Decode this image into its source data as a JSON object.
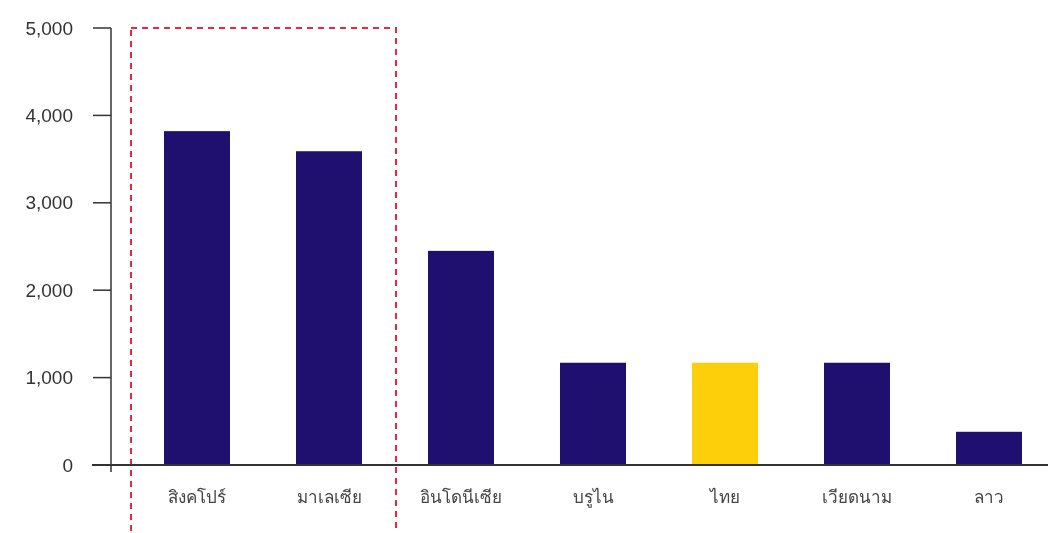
{
  "chart_data": {
    "type": "bar",
    "categories": [
      "สิงคโปร์",
      "มาเลเซีย",
      "อินโดนีเซีย",
      "บรูไน",
      "ไทย",
      "เวียดนาม",
      "ลาว"
    ],
    "values": [
      3820,
      3590,
      2450,
      1170,
      1170,
      1170,
      380
    ],
    "colors": [
      "#1f0f6e",
      "#1f0f6e",
      "#1f0f6e",
      "#1f0f6e",
      "#fccf0a",
      "#1f0f6e",
      "#1f0f6e"
    ],
    "ylim": [
      0,
      5000
    ],
    "yticks": [
      0,
      {
        "value": 1000,
        "label": "1,000"
      },
      {
        "value": 2000,
        "label": "2,000"
      },
      {
        "value": 3000,
        "label": "3,000"
      },
      {
        "value": 4000,
        "label": "4,000"
      },
      {
        "value": 5000,
        "label": "5,000"
      }
    ],
    "grid": false
  }
}
